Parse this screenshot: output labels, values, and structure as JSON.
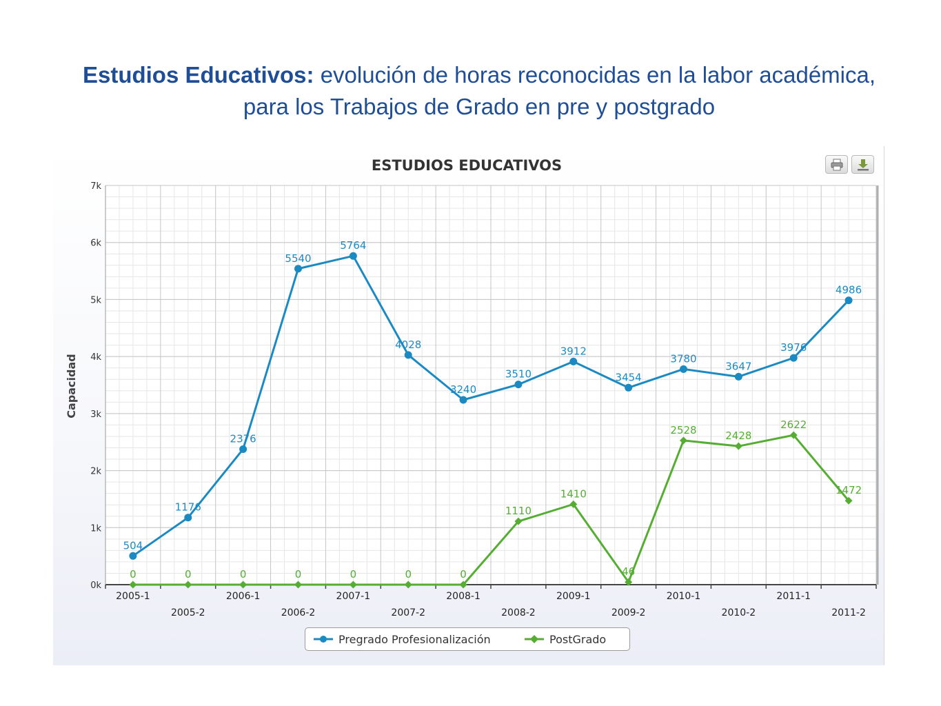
{
  "slide": {
    "title_bold": "Estudios Educativos:",
    "title_rest": " evolución de horas reconocidas en la labor académica, para los Trabajos de Grado en pre y postgrado"
  },
  "toolbar": {
    "print_icon": "printer-icon",
    "export_icon": "download-icon"
  },
  "chart_data": {
    "type": "line",
    "title": "ESTUDIOS EDUCATIVOS",
    "xlabel": "",
    "ylabel": "Capacidad",
    "ylim": [
      0,
      7000
    ],
    "yticks": [
      "0k",
      "1k",
      "2k",
      "3k",
      "4k",
      "5k",
      "6k",
      "7k"
    ],
    "grid": true,
    "legend_position": "bottom-center",
    "categories": [
      "2005-1",
      "2005-2",
      "2006-1",
      "2006-2",
      "2007-1",
      "2007-2",
      "2008-1",
      "2008-2",
      "2009-1",
      "2009-2",
      "2010-1",
      "2010-2",
      "2011-1",
      "2011-2"
    ],
    "series": [
      {
        "name": "Pregrado Profesionalización",
        "color": "#1b8ac3",
        "marker": "circle",
        "values": [
          504,
          1176,
          2376,
          5540,
          5764,
          4028,
          3240,
          3510,
          3912,
          3454,
          3780,
          3647,
          3976,
          4986
        ]
      },
      {
        "name": "PostGrado",
        "color": "#55ad32",
        "marker": "diamond",
        "values": [
          0,
          0,
          0,
          0,
          0,
          0,
          0,
          1110,
          1410,
          46,
          2528,
          2428,
          2622,
          1472
        ]
      }
    ]
  }
}
